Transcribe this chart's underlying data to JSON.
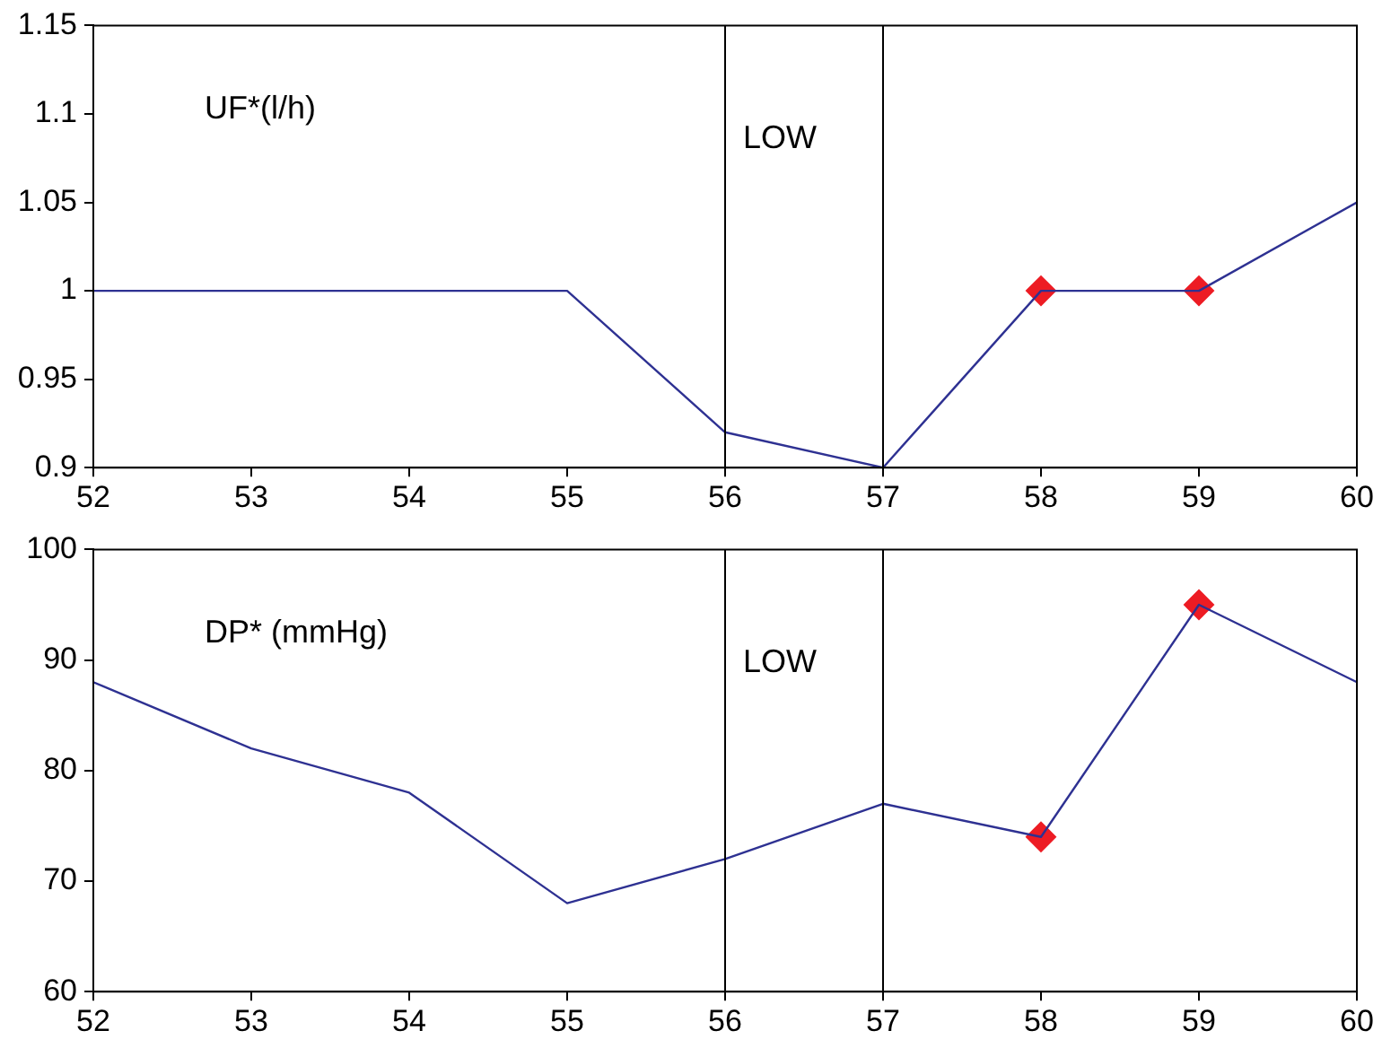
{
  "chart_data": [
    {
      "type": "line",
      "x": [
        52,
        55,
        56,
        57,
        58,
        59,
        60
      ],
      "series": [
        {
          "type": "line",
          "color": "#2e3192",
          "marker": "none",
          "values": [
            1,
            1,
            0.92,
            0.9,
            1,
            1,
            1.05
          ]
        },
        {
          "type": "scatter",
          "color": "#ed1c24",
          "marker": "diamond",
          "values": [
            null,
            null,
            null,
            null,
            1,
            1,
            null
          ]
        }
      ],
      "xlim": [
        52,
        60
      ],
      "xticks": [
        52,
        53,
        54,
        55,
        56,
        57,
        58,
        59,
        60
      ],
      "ylim": [
        0.9,
        1.15
      ],
      "yticks": [
        0.9,
        0.95,
        1,
        1.05,
        1.1,
        1.15
      ],
      "ref_lines": [
        {
          "axis": "x",
          "value": 56,
          "label": "LOW"
        },
        {
          "axis": "x",
          "value": 57
        }
      ],
      "annotations": [
        "UF*(l/h)"
      ],
      "grid": false,
      "legend": false
    },
    {
      "type": "line",
      "x": [
        52,
        53,
        54,
        55,
        56,
        57,
        58,
        59,
        60
      ],
      "series": [
        {
          "type": "line",
          "color": "#2e3192",
          "marker": "none",
          "values": [
            88,
            82,
            78,
            68,
            72,
            77,
            74,
            95,
            88
          ]
        },
        {
          "type": "scatter",
          "color": "#ed1c24",
          "marker": "diamond",
          "values": [
            null,
            null,
            null,
            null,
            null,
            null,
            74,
            95,
            null
          ]
        }
      ],
      "xlim": [
        52,
        60
      ],
      "xticks": [
        52,
        53,
        54,
        55,
        56,
        57,
        58,
        59,
        60
      ],
      "ylim": [
        60,
        100
      ],
      "yticks": [
        60,
        70,
        80,
        90,
        100
      ],
      "ref_lines": [
        {
          "axis": "x",
          "value": 56,
          "label": "LOW"
        },
        {
          "axis": "x",
          "value": 57
        }
      ],
      "annotations": [
        "DP* (mmHg)"
      ],
      "grid": false,
      "legend": false
    }
  ]
}
